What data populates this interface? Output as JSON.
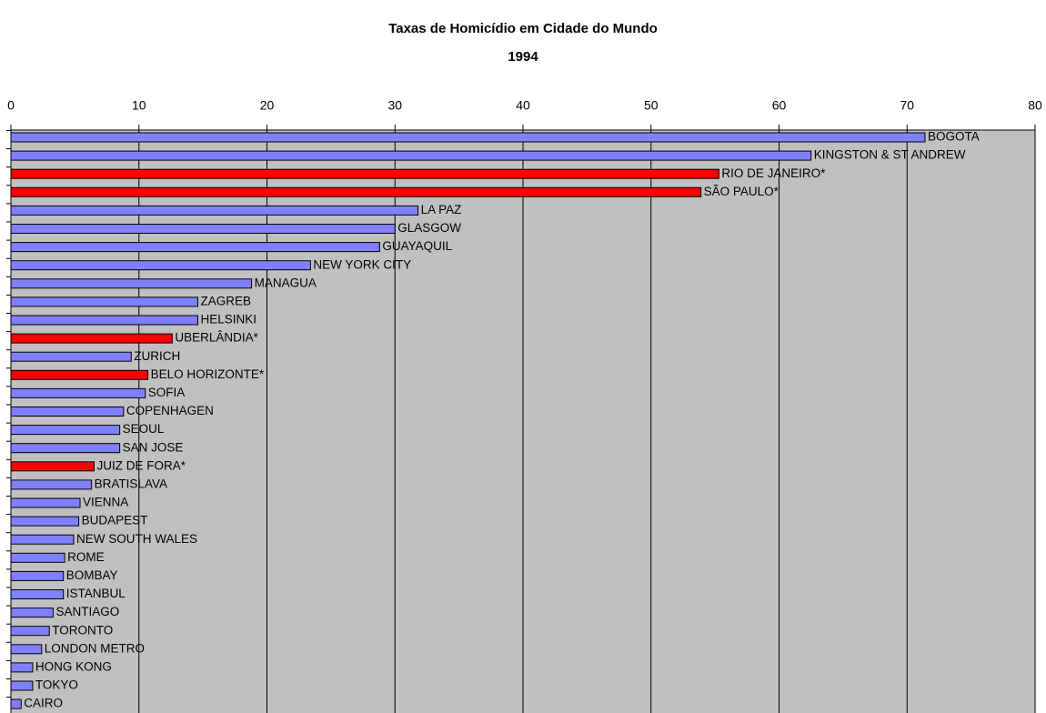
{
  "chart_data": {
    "type": "bar",
    "orientation": "horizontal",
    "title": "Taxas de Homicídio em Cidade do Mundo",
    "subtitle": "1994",
    "categories": [
      "BOGOTA",
      "KINGSTON & ST ANDREW",
      "RIO DE JANEIRO*",
      "SÃO PAULO*",
      "LA PAZ",
      "GLASGOW",
      "GUAYAQUIL",
      "NEW YORK CITY",
      "MANAGUA",
      "ZAGREB",
      "HELSINKI",
      "UBERLÂNDIA*",
      "ZURICH",
      "BELO HORIZONTE*",
      "SOFIA",
      "COPENHAGEN",
      "SEOUL",
      "SAN JOSE",
      "JUIZ DE FORA*",
      "BRATISLAVA",
      "VIENNA",
      "BUDAPEST",
      "NEW SOUTH WALES",
      "ROME",
      "BOMBAY",
      "ISTANBUL",
      "SANTIAGO",
      "TORONTO",
      "LONDON METRO",
      "HONG KONG",
      "TOKYO",
      "CAIRO"
    ],
    "values": [
      71.4,
      62.5,
      55.3,
      53.9,
      31.8,
      30.0,
      28.8,
      23.4,
      18.8,
      14.6,
      14.6,
      12.6,
      9.4,
      10.7,
      10.5,
      8.8,
      8.5,
      8.5,
      6.5,
      6.3,
      5.4,
      5.3,
      4.9,
      4.2,
      4.1,
      4.1,
      3.3,
      3.0,
      2.4,
      1.7,
      1.7,
      0.8
    ],
    "colors": [
      "#8080ff",
      "#8080ff",
      "#ff0000",
      "#ff0000",
      "#8080ff",
      "#8080ff",
      "#8080ff",
      "#8080ff",
      "#8080ff",
      "#8080ff",
      "#8080ff",
      "#ff0000",
      "#8080ff",
      "#ff0000",
      "#8080ff",
      "#8080ff",
      "#8080ff",
      "#8080ff",
      "#ff0000",
      "#8080ff",
      "#8080ff",
      "#8080ff",
      "#8080ff",
      "#8080ff",
      "#8080ff",
      "#8080ff",
      "#8080ff",
      "#8080ff",
      "#8080ff",
      "#8080ff",
      "#8080ff",
      "#8080ff"
    ],
    "xlim": [
      0,
      80
    ],
    "xticks": [
      0,
      10,
      20,
      30,
      40,
      50,
      60,
      70,
      80
    ],
    "grid": true,
    "plot_background": "#c0c0c0"
  }
}
